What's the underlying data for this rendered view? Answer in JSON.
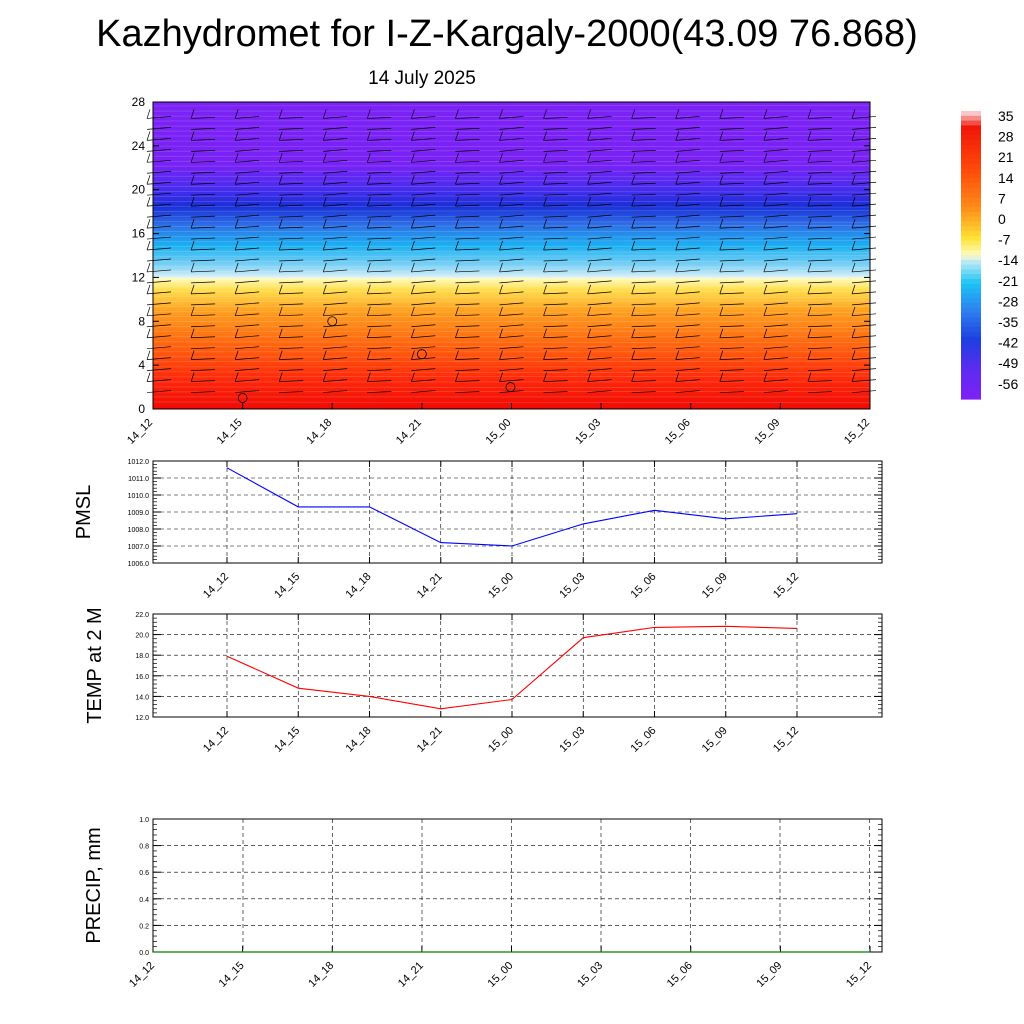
{
  "title": "Kazhydromet for I-Z-Kargaly-2000(43.09 76.868)",
  "subtitle": "14 July 2025",
  "chart_data": [
    {
      "type": "heatmap",
      "name": "vertical-profile",
      "x_categories": [
        "14_12",
        "14_15",
        "14_18",
        "14_21",
        "15_00",
        "15_03",
        "15_06",
        "15_09",
        "15_12"
      ],
      "y_ticks": [
        0,
        4,
        8,
        12,
        16,
        20,
        24,
        28
      ],
      "ylim": [
        0,
        28
      ],
      "colorbar_labels": [
        "35",
        "28",
        "21",
        "14",
        "7",
        "0",
        "-7",
        "-14",
        "-21",
        "-28",
        "-35",
        "-42",
        "-49",
        "-56"
      ],
      "colorbar_range": [
        -60,
        38
      ],
      "colorbar_colors": [
        "#7b22f5",
        "#3a2be8",
        "#1c3fe0",
        "#2e7ef0",
        "#1cc3f5",
        "#c6ecf5",
        "#fffaa0",
        "#ffe135",
        "#ffb020",
        "#ff7a10",
        "#ff4a0a",
        "#f01608",
        "#f8b4b4"
      ],
      "grid": false,
      "wind_barbs": true
    },
    {
      "type": "line",
      "name": "PMSL",
      "ylabel": "PMSL",
      "categories": [
        "14_12",
        "14_15",
        "14_18",
        "14_21",
        "15_00",
        "15_03",
        "15_06",
        "15_09",
        "15_12"
      ],
      "ylim": [
        1006.0,
        1012.0
      ],
      "y_ticks": [
        "1006.0",
        "1007.0",
        "1008.0",
        "1009.0",
        "1010.0",
        "1011.0",
        "1012.0"
      ],
      "values": [
        1011.6,
        1009.3,
        1009.3,
        1007.2,
        1007.0,
        1008.3,
        1009.1,
        1008.6,
        1008.9
      ],
      "color": "#0000ff",
      "grid": true
    },
    {
      "type": "line",
      "name": "TEMP at 2 M",
      "ylabel": "TEMP at 2 M",
      "categories": [
        "14_12",
        "14_15",
        "14_18",
        "14_21",
        "15_00",
        "15_03",
        "15_06",
        "15_09",
        "15_12"
      ],
      "ylim": [
        12.0,
        22.0
      ],
      "y_ticks": [
        "12.0",
        "14.0",
        "16.0",
        "18.0",
        "20.0",
        "22.0"
      ],
      "values": [
        17.9,
        14.8,
        14.0,
        12.8,
        13.7,
        19.7,
        20.7,
        20.8,
        20.6
      ],
      "color": "#ff0000",
      "grid": true
    },
    {
      "type": "line",
      "name": "PRECIP, mm",
      "ylabel": "PRECIP, mm",
      "categories": [
        "14_12",
        "14_15",
        "14_18",
        "14_21",
        "15_00",
        "15_03",
        "15_06",
        "15_09",
        "15_12"
      ],
      "ylim": [
        0.0,
        1.0
      ],
      "y_ticks": [
        "0.0",
        "0.2",
        "0.4",
        "0.6",
        "0.8",
        "1.0"
      ],
      "values": [
        0,
        0,
        0,
        0,
        0,
        0,
        0,
        0,
        0
      ],
      "color": "#008000",
      "grid": true
    }
  ]
}
